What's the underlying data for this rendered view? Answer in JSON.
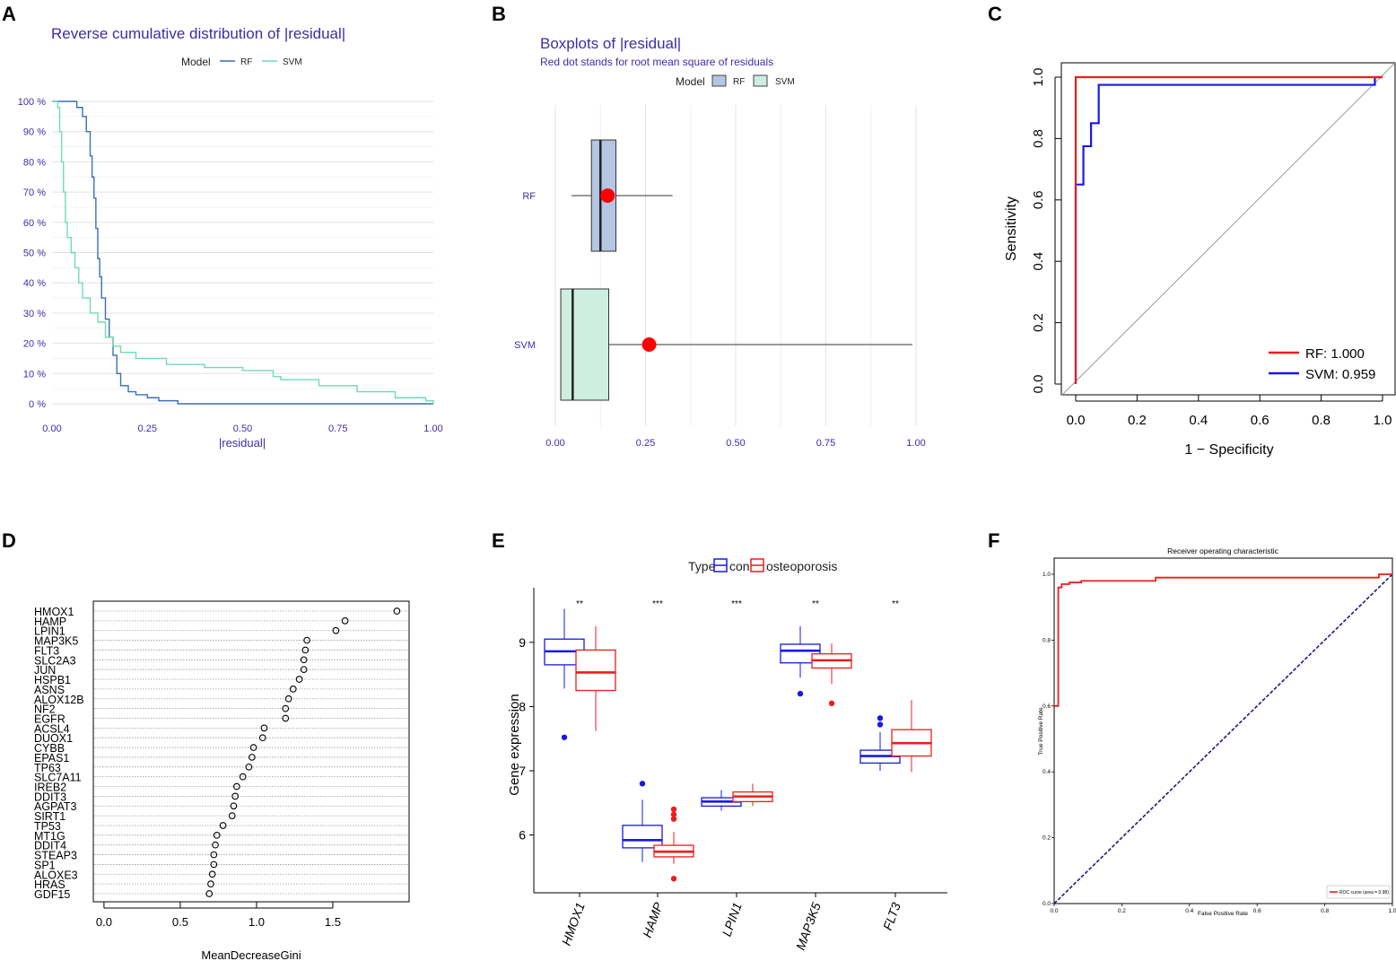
{
  "panel_labels": [
    "A",
    "B",
    "C",
    "D",
    "E",
    "F"
  ],
  "colors": {
    "rf": "#3a6fb8",
    "svm": "#6fdbb5",
    "roc_rf": "#ee1c1c",
    "roc_svm": "#1818e6",
    "purple_text": "#3b2ea6",
    "box_rf": "#b4c6e2",
    "box_svm": "#cdeee0",
    "red": "#ee1c1c",
    "blue": "#1818e6",
    "navy_dash": "#1a1a80"
  },
  "chart_data": [
    {
      "id": "A",
      "type": "line",
      "title": "Reverse cumulative distribution of |residual|",
      "legend_title": "Model",
      "xlabel": "|residual|",
      "ylabel": "",
      "xlim": [
        0,
        1.0
      ],
      "ylim": [
        0,
        100
      ],
      "xticks": [
        "0.00",
        "0.25",
        "0.50",
        "0.75",
        "1.00"
      ],
      "yticks": [
        "0 %",
        "10 %",
        "20 %",
        "30 %",
        "40 %",
        "50 %",
        "60 %",
        "70 %",
        "80 %",
        "90 %",
        "100 %"
      ],
      "series": [
        {
          "name": "RF",
          "x": [
            0.0,
            0.05,
            0.065,
            0.08,
            0.09,
            0.1,
            0.105,
            0.11,
            0.115,
            0.12,
            0.125,
            0.13,
            0.14,
            0.15,
            0.16,
            0.17,
            0.18,
            0.2,
            0.22,
            0.25,
            0.28,
            0.33,
            0.5,
            0.75,
            1.0
          ],
          "y": [
            100,
            100,
            98,
            95,
            90,
            82,
            75,
            68,
            58,
            48,
            42,
            35,
            28,
            22,
            16,
            10,
            6,
            4,
            3,
            2,
            1,
            0,
            0,
            0,
            0
          ]
        },
        {
          "name": "SVM",
          "x": [
            0.0,
            0.015,
            0.02,
            0.025,
            0.03,
            0.035,
            0.04,
            0.05,
            0.06,
            0.07,
            0.08,
            0.1,
            0.12,
            0.14,
            0.16,
            0.18,
            0.22,
            0.3,
            0.4,
            0.5,
            0.58,
            0.6,
            0.7,
            0.8,
            0.9,
            0.98,
            1.0
          ],
          "y": [
            100,
            98,
            90,
            80,
            70,
            60,
            55,
            50,
            45,
            40,
            35,
            30,
            27,
            22,
            19,
            17,
            15,
            13,
            12,
            11,
            9,
            8,
            6,
            4,
            2,
            1,
            0
          ]
        }
      ]
    },
    {
      "id": "B",
      "type": "box",
      "title": "Boxplots of |residual|",
      "subtitle": "Red dot stands for root mean square of residuals",
      "legend_title": "Model",
      "xlim": [
        0,
        1.0
      ],
      "xticks": [
        "0.00",
        "0.25",
        "0.50",
        "0.75",
        "1.00"
      ],
      "groups": [
        {
          "name": "RF",
          "min": 0.045,
          "q1": 0.1,
          "median": 0.125,
          "q3": 0.168,
          "max": 0.325,
          "rms": 0.145
        },
        {
          "name": "SVM",
          "min": 0.015,
          "q1": 0.015,
          "median": 0.048,
          "q3": 0.148,
          "max": 0.99,
          "rms": 0.26
        }
      ]
    },
    {
      "id": "C",
      "type": "line",
      "xlabel": "1 − Specificity",
      "ylabel": "Sensitivity",
      "xlim": [
        0,
        1.0
      ],
      "ylim": [
        0,
        1.0
      ],
      "xticks": [
        "0.0",
        "0.2",
        "0.4",
        "0.6",
        "0.8",
        "1.0"
      ],
      "yticks": [
        "0.0",
        "0.2",
        "0.4",
        "0.6",
        "0.8",
        "1.0"
      ],
      "legend": [
        "RF: 1.000",
        "SVM: 0.959"
      ],
      "series": [
        {
          "name": "RF",
          "x": [
            0,
            0,
            0,
            1.0
          ],
          "y": [
            0,
            0.65,
            1.0,
            1.0
          ]
        },
        {
          "name": "SVM",
          "x": [
            0,
            0,
            0.025,
            0.025,
            0.05,
            0.05,
            0.075,
            0.075,
            0.975,
            0.975,
            1.0
          ],
          "y": [
            0,
            0.65,
            0.65,
            0.775,
            0.775,
            0.85,
            0.85,
            0.975,
            0.975,
            1.0,
            1.0
          ]
        }
      ]
    },
    {
      "id": "D",
      "type": "scatter",
      "xlabel": "MeanDecreaseGini",
      "xlim": [
        -0.07,
        2.0
      ],
      "xticks": [
        "0.0",
        "0.5",
        "1.0",
        "1.5"
      ],
      "genes": [
        "HMOX1",
        "HAMP",
        "LPIN1",
        "MAP3K5",
        "FLT3",
        "SLC2A3",
        "JUN",
        "HSPB1",
        "ASNS",
        "ALOX12B",
        "NF2",
        "EGFR",
        "ACSL4",
        "DUOX1",
        "CYBB",
        "EPAS1",
        "TP63",
        "SLC7A11",
        "IREB2",
        "DDIT3",
        "AGPAT3",
        "SIRT1",
        "TP53",
        "MT1G",
        "DDIT4",
        "STEAP3",
        "SP1",
        "ALOXE3",
        "HRAS",
        "GDF15"
      ],
      "values": [
        1.92,
        1.58,
        1.52,
        1.33,
        1.32,
        1.31,
        1.31,
        1.28,
        1.24,
        1.21,
        1.19,
        1.19,
        1.05,
        1.04,
        0.98,
        0.97,
        0.95,
        0.91,
        0.87,
        0.86,
        0.85,
        0.84,
        0.78,
        0.74,
        0.73,
        0.72,
        0.72,
        0.71,
        0.7,
        0.69
      ]
    },
    {
      "id": "E",
      "type": "box",
      "legend_title": "Type",
      "legend": [
        "con",
        "osteoporosis"
      ],
      "ylabel": "Gene expression",
      "ylim": [
        5.1,
        9.85
      ],
      "yticks": [
        "6",
        "7",
        "8",
        "9"
      ],
      "categories": [
        "HMOX1",
        "HAMP",
        "LPIN1",
        "MAP3K5",
        "FLT3"
      ],
      "significance": [
        "**",
        "***",
        "***",
        "**",
        "**"
      ],
      "series": [
        {
          "name": "con",
          "boxes": [
            {
              "min": 8.28,
              "q1": 8.65,
              "median": 8.86,
              "q3": 9.05,
              "max": 9.52,
              "outliers": [
                7.52
              ]
            },
            {
              "min": 5.58,
              "q1": 5.8,
              "median": 5.92,
              "q3": 6.15,
              "max": 6.55,
              "outliers": [
                6.8
              ]
            },
            {
              "min": 6.38,
              "q1": 6.45,
              "median": 6.52,
              "q3": 6.58,
              "max": 6.7,
              "outliers": []
            },
            {
              "min": 8.45,
              "q1": 8.68,
              "median": 8.87,
              "q3": 8.97,
              "max": 9.25,
              "outliers": [
                8.2
              ]
            },
            {
              "min": 7.0,
              "q1": 7.12,
              "median": 7.23,
              "q3": 7.32,
              "max": 7.6,
              "outliers": [
                7.72,
                7.82
              ]
            }
          ]
        },
        {
          "name": "osteoporosis",
          "boxes": [
            {
              "min": 7.62,
              "q1": 8.25,
              "median": 8.53,
              "q3": 8.88,
              "max": 9.25,
              "outliers": []
            },
            {
              "min": 5.55,
              "q1": 5.66,
              "median": 5.74,
              "q3": 5.84,
              "max": 6.05,
              "outliers": [
                6.25,
                6.32,
                6.4,
                5.32
              ]
            },
            {
              "min": 6.45,
              "q1": 6.52,
              "median": 6.6,
              "q3": 6.67,
              "max": 6.8,
              "outliers": []
            },
            {
              "min": 8.35,
              "q1": 8.6,
              "median": 8.72,
              "q3": 8.82,
              "max": 8.98,
              "outliers": [
                8.05
              ]
            },
            {
              "min": 6.98,
              "q1": 7.23,
              "median": 7.43,
              "q3": 7.64,
              "max": 8.1,
              "outliers": []
            }
          ]
        }
      ]
    },
    {
      "id": "F",
      "type": "line",
      "title": "Receiver operating characteristic",
      "xlabel": "False Positive Rate",
      "ylabel": "True Positive Rate",
      "xlim": [
        0,
        1.0
      ],
      "ylim": [
        0,
        1.0
      ],
      "xticks": [
        "0.0",
        "0.2",
        "0.4",
        "0.6",
        "0.8",
        "1.0"
      ],
      "yticks": [
        "0.0",
        "0.2",
        "0.4",
        "0.6",
        "0.8",
        "1.0"
      ],
      "legend": [
        "ROC curve (area = 0.98)"
      ],
      "series": [
        {
          "name": "ROC curve (area = 0.98)",
          "x": [
            0,
            0.012,
            0.012,
            0.022,
            0.022,
            0.045,
            0.045,
            0.08,
            0.08,
            0.3,
            0.3,
            0.96,
            0.96,
            1.0
          ],
          "y": [
            0.6,
            0.6,
            0.96,
            0.96,
            0.97,
            0.97,
            0.975,
            0.975,
            0.98,
            0.98,
            0.99,
            0.99,
            1.0,
            1.0
          ]
        },
        {
          "name": "chance",
          "x": [
            0,
            1
          ],
          "y": [
            0,
            1
          ]
        }
      ]
    }
  ]
}
